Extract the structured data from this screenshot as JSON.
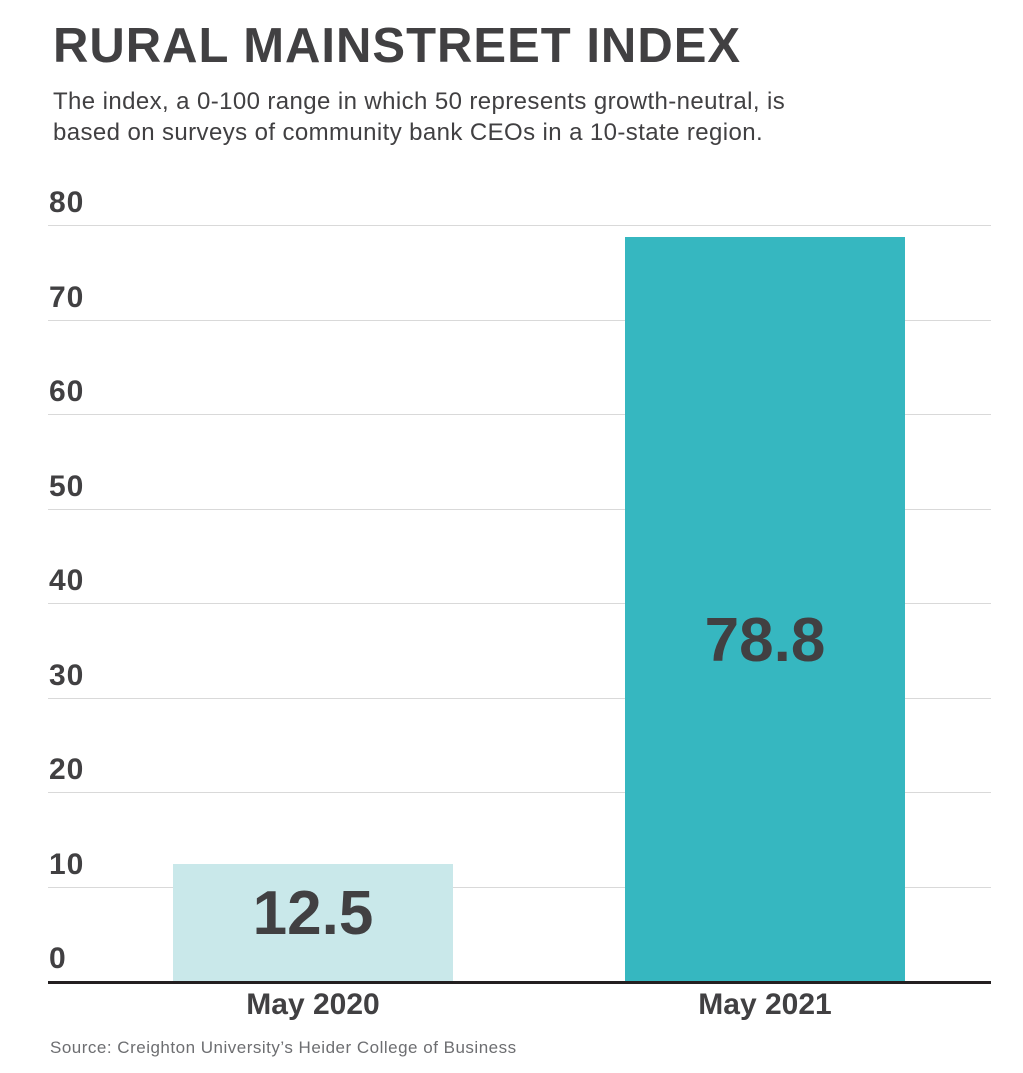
{
  "header": {
    "title": "RURAL MAINSTREET INDEX",
    "subtitle": "The index, a 0-100 range in which 50 represents growth-neutral, is\nbased on surveys of community bank CEOs in a 10-state region."
  },
  "chart_data": {
    "type": "bar",
    "title": "RURAL MAINSTREET INDEX",
    "subtitle": "The index, a 0-100 range in which 50 represents growth-neutral, is based on surveys of community bank CEOs in a 10-state region.",
    "categories": [
      "May 2020",
      "May 2021"
    ],
    "values": [
      12.5,
      78.8
    ],
    "value_labels": [
      "12.5",
      "78.8"
    ],
    "bar_colors": [
      "#c9e8ea",
      "#36b7c0"
    ],
    "xlabel": "",
    "ylabel": "",
    "ylim": [
      0,
      80
    ],
    "yticks": [
      0,
      10,
      20,
      30,
      40,
      50,
      60,
      70,
      80
    ],
    "grid": true,
    "legend": "none"
  },
  "footer": {
    "source": "Source: Creighton University’s Heider College of Business"
  },
  "colors": {
    "text_dark": "#414042",
    "gridline": "#d9d9d9",
    "axis": "#231f20",
    "bar_may_2020": "#c9e8ea",
    "bar_may_2021": "#36b7c0",
    "source_text": "#6d6e71"
  }
}
